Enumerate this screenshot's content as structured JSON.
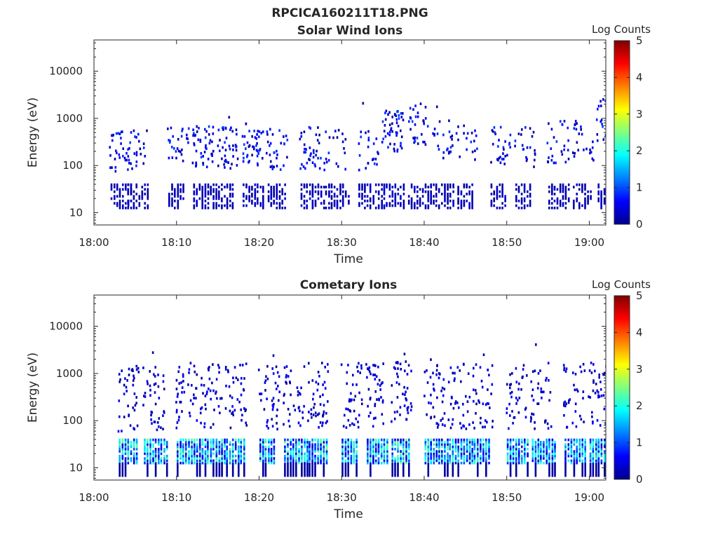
{
  "figure": {
    "title": "RPCICA160211T18.PNG"
  },
  "colormap": [
    "#00008f",
    "#0000ff",
    "#0080ff",
    "#00ffff",
    "#80ff80",
    "#ffff00",
    "#ff8000",
    "#ff0000",
    "#800000"
  ],
  "chart_data": [
    {
      "type": "heatmap",
      "title": "Solar Wind Ions",
      "xlabel": "Time",
      "ylabel": "Energy (eV)",
      "y_scale": "log",
      "xlim": [
        "18:00",
        "19:02"
      ],
      "ylim": [
        5.5,
        46000
      ],
      "x_ticks": [
        "18:00",
        "18:10",
        "18:20",
        "18:30",
        "18:40",
        "18:50",
        "19:00"
      ],
      "y_ticks": [
        "10",
        "100",
        "1000",
        "10000"
      ],
      "colorbar": {
        "label": "Log Counts",
        "range": [
          0,
          5
        ],
        "ticks": [
          "0",
          "1",
          "2",
          "3",
          "4",
          "5"
        ]
      },
      "bursts": [
        {
          "t": 18.03,
          "n": 30,
          "mid": 185,
          "low": 20,
          "lowmax": 0.35
        },
        {
          "t": 18.05,
          "n": 25,
          "mid": 200,
          "low": 20,
          "lowmax": 0.3
        },
        {
          "t": 18.1,
          "n": 28,
          "mid": 220,
          "low": 20,
          "lowmax": 0.3
        },
        {
          "t": 18.13,
          "n": 45,
          "mid": 240,
          "low": 20,
          "lowmax": 0.35
        },
        {
          "t": 18.16,
          "n": 40,
          "mid": 230,
          "low": 20,
          "lowmax": 0.35
        },
        {
          "t": 18.19,
          "n": 42,
          "mid": 260,
          "low": 20,
          "lowmax": 0.4
        },
        {
          "t": 18.22,
          "n": 30,
          "mid": 200,
          "low": 20,
          "lowmax": 0.35
        },
        {
          "t": 18.26,
          "n": 38,
          "mid": 220,
          "low": 20,
          "lowmax": 0.4
        },
        {
          "t": 18.29,
          "n": 20,
          "mid": 190,
          "low": 20,
          "lowmax": 0.3
        },
        {
          "t": 18.33,
          "n": 22,
          "mid": 180,
          "low": 20,
          "lowmax": 0.35
        },
        {
          "t": 18.36,
          "n": 50,
          "mid": 520,
          "low": 20,
          "lowmax": 0.45
        },
        {
          "t": 18.39,
          "n": 30,
          "mid": 700,
          "low": 20,
          "lowmax": 0.3
        },
        {
          "t": 18.42,
          "n": 24,
          "mid": 360,
          "low": 20,
          "lowmax": 0.3
        },
        {
          "t": 18.45,
          "n": 18,
          "mid": 320,
          "low": 20,
          "lowmax": 0.3
        },
        {
          "t": 18.49,
          "n": 28,
          "mid": 220,
          "low": 20,
          "lowmax": 0.3
        },
        {
          "t": 18.52,
          "n": 22,
          "mid": 230,
          "low": 20,
          "lowmax": 0.3
        },
        {
          "t": 18.56,
          "n": 26,
          "mid": 300,
          "low": 20,
          "lowmax": 0.3
        },
        {
          "t": 18.59,
          "n": 24,
          "mid": 300,
          "low": 20,
          "lowmax": 0.3
        },
        {
          "t": 18.62,
          "n": 30,
          "mid": 900,
          "low": 20,
          "lowmax": 0.35
        }
      ]
    },
    {
      "type": "heatmap",
      "title": "Cometary Ions",
      "xlabel": "Time",
      "ylabel": "Energy (eV)",
      "y_scale": "log",
      "xlim": [
        "18:00",
        "19:02"
      ],
      "ylim": [
        5.5,
        46000
      ],
      "x_ticks": [
        "18:00",
        "18:10",
        "18:20",
        "18:30",
        "18:40",
        "18:50",
        "19:00"
      ],
      "y_ticks": [
        "10",
        "100",
        "1000",
        "10000"
      ],
      "colorbar": {
        "label": "Log Counts",
        "range": [
          0,
          5
        ],
        "ticks": [
          "0",
          "1",
          "2",
          "3",
          "4",
          "5"
        ]
      },
      "bursts": [
        {
          "t": 18.04,
          "n": 40,
          "mid": 280,
          "low": 20,
          "lowmax": 2.2
        },
        {
          "t": 18.07,
          "n": 40,
          "mid": 300,
          "low": 20,
          "lowmax": 2.1
        },
        {
          "t": 18.11,
          "n": 42,
          "mid": 330,
          "low": 20,
          "lowmax": 2.1
        },
        {
          "t": 18.14,
          "n": 38,
          "mid": 300,
          "low": 20,
          "lowmax": 2.0
        },
        {
          "t": 18.17,
          "n": 40,
          "mid": 320,
          "low": 20,
          "lowmax": 2.1
        },
        {
          "t": 18.21,
          "n": 38,
          "mid": 300,
          "low": 20,
          "lowmax": 2.0
        },
        {
          "t": 18.24,
          "n": 36,
          "mid": 280,
          "low": 20,
          "lowmax": 2.0
        },
        {
          "t": 18.27,
          "n": 44,
          "mid": 340,
          "low": 20,
          "lowmax": 2.2
        },
        {
          "t": 18.31,
          "n": 40,
          "mid": 320,
          "low": 20,
          "lowmax": 2.1
        },
        {
          "t": 18.34,
          "n": 42,
          "mid": 340,
          "low": 20,
          "lowmax": 2.1
        },
        {
          "t": 18.37,
          "n": 44,
          "mid": 360,
          "low": 20,
          "lowmax": 2.2
        },
        {
          "t": 18.41,
          "n": 40,
          "mid": 340,
          "low": 20,
          "lowmax": 2.0
        },
        {
          "t": 18.44,
          "n": 36,
          "mid": 320,
          "low": 20,
          "lowmax": 2.0
        },
        {
          "t": 18.47,
          "n": 36,
          "mid": 300,
          "low": 20,
          "lowmax": 1.9
        },
        {
          "t": 18.51,
          "n": 36,
          "mid": 320,
          "low": 20,
          "lowmax": 1.9
        },
        {
          "t": 18.54,
          "n": 36,
          "mid": 320,
          "low": 20,
          "lowmax": 1.9
        },
        {
          "t": 18.58,
          "n": 36,
          "mid": 320,
          "low": 20,
          "lowmax": 1.9
        },
        {
          "t": 18.61,
          "n": 38,
          "mid": 330,
          "low": 20,
          "lowmax": 2.0
        }
      ]
    }
  ]
}
